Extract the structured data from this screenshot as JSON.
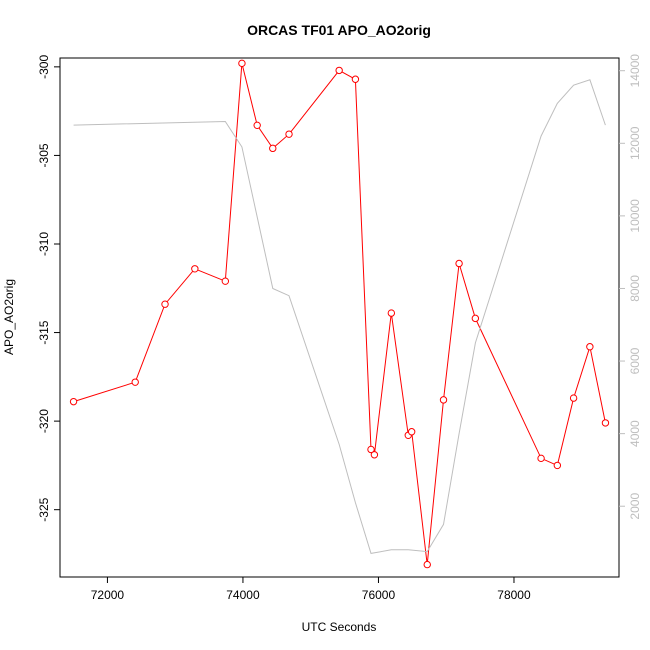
{
  "chart_data": {
    "type": "line",
    "title": "ORCAS TF01 APO_AO2orig",
    "xlabel": "UTC Seconds",
    "ylabel": "APO_AO2orig",
    "xlim": [
      71300,
      79550
    ],
    "ylim": [
      -328.8,
      -299.5
    ],
    "y2lim": [
      50,
      14350
    ],
    "x_ticks": [
      72000,
      74000,
      76000,
      78000
    ],
    "y_ticks": [
      -300,
      -305,
      -310,
      -315,
      -320,
      -325
    ],
    "y2_ticks": [
      2000,
      4000,
      6000,
      8000,
      10000,
      12000,
      14000
    ],
    "colors": {
      "primary": "#ff0000",
      "secondary": "#bebebe"
    },
    "series": [
      {
        "axis": "left",
        "style": "line-with-points",
        "x": [
          71500,
          72410,
          72850,
          73290,
          73740,
          73985,
          74210,
          74440,
          74680,
          75420,
          75660,
          75890,
          75940,
          76190,
          76440,
          76490,
          76720,
          76960,
          77190,
          77430,
          78400,
          78640,
          78880,
          79120,
          79350
        ],
        "y": [
          -318.9,
          -317.8,
          -313.4,
          -311.4,
          -312.1,
          -299.8,
          -303.3,
          -304.6,
          -303.8,
          -300.2,
          -300.7,
          -321.6,
          -321.9,
          -313.9,
          -320.8,
          -320.6,
          -328.1,
          -318.8,
          -311.1,
          -314.2,
          -322.1,
          -322.5,
          -318.7,
          -315.8,
          -320.1
        ]
      },
      {
        "axis": "right",
        "style": "line",
        "x": [
          71500,
          73740,
          73985,
          74440,
          74680,
          75420,
          75660,
          75890,
          76190,
          76440,
          76720,
          76960,
          77190,
          77430,
          78400,
          78640,
          78880,
          79120,
          79350
        ],
        "y": [
          12500,
          12600,
          11900,
          8000,
          7800,
          3700,
          2100,
          700,
          800,
          800,
          750,
          1500,
          4000,
          6500,
          12200,
          13100,
          13600,
          13750,
          12500
        ]
      }
    ]
  }
}
